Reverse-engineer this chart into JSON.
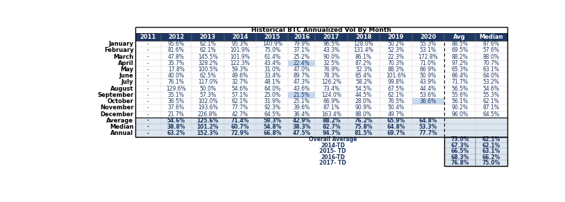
{
  "title": "Historical BTC Annualized Vol By Month",
  "years": [
    "2011",
    "2012",
    "2013",
    "2014",
    "2015",
    "2016",
    "2017",
    "2018",
    "2019",
    "2020",
    "Avg",
    "Median"
  ],
  "months": [
    "January",
    "February",
    "March",
    "April",
    "May",
    "June",
    "July",
    "August",
    "September",
    "October",
    "November",
    "December"
  ],
  "data": {
    "January": [
      "-",
      "95.6%",
      "62.1%",
      "95.3%",
      "140.9%",
      "79.9%",
      "96.5%",
      "128.0%",
      "50.2%",
      "55.3%",
      "88.5%",
      "87.6%"
    ],
    "February": [
      "-",
      "81.6%",
      "62.1%",
      "101.9%",
      "75.0%",
      "37.1%",
      "43.3%",
      "131.4%",
      "52.3%",
      "53.1%",
      "69.5%",
      "57.6%"
    ],
    "March": [
      "-",
      "47.8%",
      "145.5%",
      "101.9%",
      "61.4%",
      "25.2%",
      "90.0%",
      "86.1%",
      "22.3%",
      "172.8%",
      "88.2%",
      "88.0%"
    ],
    "April": [
      "-",
      "35.7%",
      "328.2%",
      "122.3%",
      "43.4%",
      "22.4%",
      "32.5%",
      "87.2%",
      "70.3%",
      "71.0%",
      "97.2%",
      "70.7%"
    ],
    "May": [
      "-",
      "17.8%",
      "100.5%",
      "59.3%",
      "31.0%",
      "47.0%",
      "76.9%",
      "52.3%",
      "88.3%",
      "66.9%",
      "65.3%",
      "63.1%"
    ],
    "June": [
      "-",
      "40.0%",
      "62.5%",
      "49.6%",
      "33.4%",
      "89.7%",
      "78.3%",
      "65.4%",
      "101.6%",
      "50.9%",
      "66.4%",
      "64.0%"
    ],
    "July": [
      "-",
      "76.1%",
      "117.0%",
      "32.7%",
      "48.1%",
      "47.3%",
      "126.2%",
      "58.2%",
      "99.8%",
      "43.9%",
      "71.7%",
      "53.2%"
    ],
    "August": [
      "-",
      "129.6%",
      "50.0%",
      "54.6%",
      "64.0%",
      "43.6%",
      "73.4%",
      "54.5%",
      "67.5%",
      "44.4%",
      "56.5%",
      "54.6%"
    ],
    "September": [
      "-",
      "35.1%",
      "57.3%",
      "57.1%",
      "25.0%",
      "21.5%",
      "124.0%",
      "44.5%",
      "62.1%",
      "53.6%",
      "55.6%",
      "55.3%"
    ],
    "October": [
      "-",
      "36.5%",
      "102.0%",
      "62.1%",
      "31.9%",
      "25.1%",
      "66.9%",
      "28.0%",
      "76.5%",
      "36.6%",
      "56.1%",
      "62.1%"
    ],
    "November": [
      "-",
      "37.6%",
      "193.6%",
      "77.7%",
      "92.3%",
      "39.6%",
      "87.1%",
      "90.9%",
      "50.4%",
      "",
      "90.2%",
      "87.1%"
    ],
    "December": [
      "-",
      "21.7%",
      "226.8%",
      "42.7%",
      "64.5%",
      "36.4%",
      "163.4%",
      "88.0%",
      "49.7%",
      "",
      "96.0%",
      "64.5%"
    ]
  },
  "summary_rows": {
    "Average": [
      "-",
      "54.6%",
      "125.6%",
      "71.4%",
      "59.3%",
      "42.9%",
      "88.2%",
      "76.2%",
      "65.9%",
      "64.8%"
    ],
    "Median": [
      "-",
      "38.8%",
      "101.2%",
      "60.7%",
      "54.8%",
      "38.3%",
      "82.7%",
      "75.8%",
      "64.8%",
      "53.3%"
    ],
    "Annual": [
      "-",
      "63.2%",
      "152.3%",
      "72.9%",
      "66.8%",
      "47.5%",
      "94.7%",
      "81.5%",
      "69.7%",
      "77.7%"
    ]
  },
  "overall_rows": {
    "labels": [
      "Overall Average",
      "2014-TD",
      "2015- TD",
      "2016-TD",
      "2017- TD"
    ],
    "avg": [
      "73.0%",
      "67.3%",
      "66.5%",
      "68.3%",
      "76.8%"
    ],
    "median": [
      "62.1%",
      "62.1%",
      "63.1%",
      "66.2%",
      "75.0%"
    ]
  },
  "highlight_cells": [
    {
      "row": "April",
      "col": "2016",
      "color": "#c5d9f1"
    },
    {
      "row": "September",
      "col": "2016",
      "color": "#c5d9f1"
    },
    {
      "row": "October",
      "col": "2020",
      "color": "#c5d9f1"
    }
  ],
  "header_bg": "#1f3864",
  "header_fg": "#ffffff",
  "summary_bg": "#dce6f1",
  "overall_bg": "#dce6f1",
  "title_fontsize": 6.5,
  "cell_fontsize": 5.5,
  "header_fontsize": 6.0,
  "label_fontsize": 6.0
}
